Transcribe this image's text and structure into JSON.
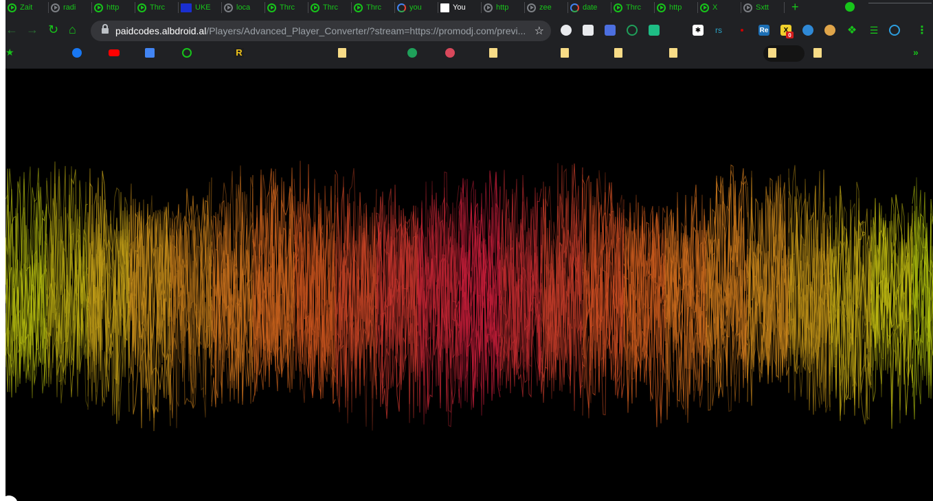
{
  "browser": {
    "tabs": [
      {
        "title": "Zait",
        "icon": "play-circle-icon"
      },
      {
        "title": "radi",
        "icon": "globe-icon"
      },
      {
        "title": "http",
        "icon": "play-circle-icon"
      },
      {
        "title": "Thrc",
        "icon": "play-circle-icon"
      },
      {
        "title": "UKE",
        "icon": "tools-icon"
      },
      {
        "title": "loca",
        "icon": "globe-icon"
      },
      {
        "title": "Thrc",
        "icon": "play-circle-icon"
      },
      {
        "title": "Thrc",
        "icon": "play-circle-icon"
      },
      {
        "title": "Thrc",
        "icon": "play-circle-icon"
      },
      {
        "title": "you",
        "icon": "google-icon"
      },
      {
        "title": "You",
        "icon": "page-icon",
        "active": true
      },
      {
        "title": "http",
        "icon": "globe-icon"
      },
      {
        "title": "zee",
        "icon": "github-icon"
      },
      {
        "title": "date",
        "icon": "google-icon"
      },
      {
        "title": "Thrc",
        "icon": "play-circle-icon"
      },
      {
        "title": "http",
        "icon": "play-circle-icon"
      },
      {
        "title": "X",
        "icon": "play-circle-icon"
      },
      {
        "title": "Sxtt",
        "icon": "github-icon"
      }
    ],
    "toolbar": {
      "url_host": "paidcodes.albdroid.al",
      "url_path": "/Players/Advanced_Player_Converter/?stream=https://promodj.com/previ...",
      "ext_rs_label": "rs",
      "ext_re_label": "Re",
      "ext_badge_count": "0"
    },
    "colors": {
      "accent": "#17c51a",
      "chrome_bg": "#202124",
      "omnibox_bg": "#35363a",
      "visualizer_bg": "#000000"
    }
  },
  "visualizer": {
    "type": "audio-waveform",
    "palette": [
      "#b7c80f",
      "#c98a1c",
      "#c9541e",
      "#c41a3b"
    ]
  }
}
